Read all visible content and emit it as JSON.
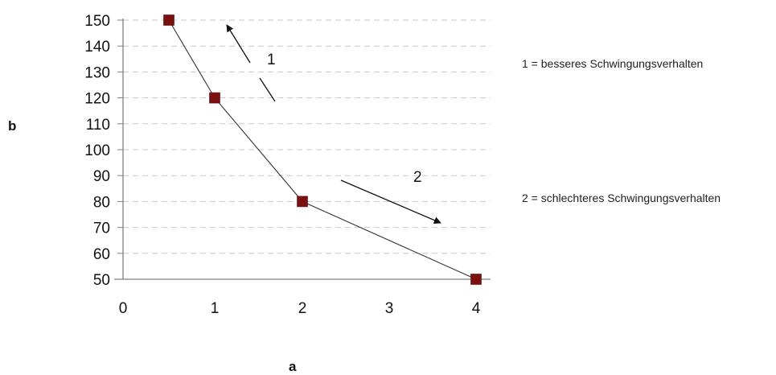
{
  "chart_data": {
    "type": "line",
    "title": "",
    "xlabel": "a",
    "ylabel": "b",
    "x_ticks": [
      "0",
      "1",
      "2",
      "3",
      "4"
    ],
    "y_ticks": [
      50,
      60,
      70,
      80,
      90,
      100,
      110,
      120,
      130,
      140,
      150
    ],
    "ylim": [
      50,
      150
    ],
    "grid": true,
    "series": [
      {
        "x": [
          0.5,
          1,
          2,
          4
        ],
        "y": [
          150,
          120,
          80,
          50
        ],
        "marker": "square",
        "marker_color": "#7a1010",
        "line_color": "#333333"
      }
    ],
    "annotations": [
      {
        "label": "1",
        "direction": "up-left"
      },
      {
        "label": "2",
        "direction": "down-right"
      }
    ],
    "legend": {
      "placement": "right",
      "items": [
        "1 = besseres Schwingungsverhalten",
        "2 = schlechteres Schwingungsverhalten"
      ]
    }
  }
}
